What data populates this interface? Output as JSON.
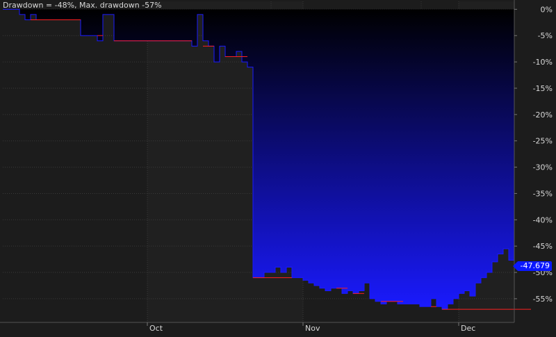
{
  "header": {
    "title": "Drawdown = -48%, Max. drawdown -57%"
  },
  "current_value_label": "-47.679",
  "colors": {
    "background": "#1c1c1c",
    "band_alternate": "#202020",
    "grid": "#3a3a3a",
    "area_top": "#000000",
    "area_bottom": "#1a1aff",
    "line": "#1a1aff",
    "max_marker": "#ff2020",
    "badge": "#0a18ff",
    "axis_text": "#d8d8d8"
  },
  "chart_data": {
    "type": "area",
    "title": "Drawdown = -48%, Max. drawdown -57%",
    "y_axis_side": "right",
    "ylim": [
      -59.5,
      1.5
    ],
    "yticks": [
      0,
      -5,
      -10,
      -15,
      -20,
      -25,
      -30,
      -35,
      -40,
      -45,
      -50,
      -55
    ],
    "ytick_labels": [
      "0%",
      "-5%",
      "-10%",
      "-15%",
      "-20%",
      "-25%",
      "-30%",
      "-35%",
      "-40%",
      "-45%",
      "-50%",
      "-55%"
    ],
    "xtick_labels": [
      "Oct",
      "Nov",
      "Dec"
    ],
    "xtick_positions": [
      26,
      54,
      82
    ],
    "grid": true,
    "step": true,
    "series": [
      {
        "values": [
          0,
          0,
          0,
          -1,
          -2,
          -1,
          -2,
          -2,
          -2,
          -2,
          -2,
          -2,
          -2,
          -2,
          -5,
          -5,
          -5,
          -6,
          -1,
          -1,
          -6,
          -6,
          -6,
          -6,
          -6,
          -6,
          -6,
          -6,
          -6,
          -6,
          -6,
          -6,
          -6,
          -6,
          -7,
          -1,
          -6,
          -7,
          -10,
          -7,
          -9,
          -9,
          -8,
          -10,
          -11,
          -51,
          -51,
          -50,
          -50,
          -49,
          -50,
          -49,
          -51,
          -51,
          -51.5,
          -52,
          -52.5,
          -53,
          -53.5,
          -53,
          -53,
          -54,
          -53.5,
          -54,
          -53.5,
          -52,
          -55,
          -55.5,
          -56,
          -55.5,
          -55.5,
          -56,
          -56,
          -56,
          -56,
          -56.5,
          -56.5,
          -55,
          -56.5,
          -57,
          -56,
          -55,
          -54,
          -53.5,
          -54.5,
          -52,
          -51,
          -50,
          -48,
          -46.5,
          -45.5,
          -47.679
        ]
      }
    ],
    "max_drawdown_markers": [
      {
        "value": -2,
        "start": 5,
        "end": 14
      },
      {
        "value": -5,
        "start": 17,
        "end": 18
      },
      {
        "value": -6,
        "start": 20,
        "end": 34
      },
      {
        "value": -7,
        "start": 36,
        "end": 38
      },
      {
        "value": -9,
        "start": 40,
        "end": 44
      },
      {
        "value": -51,
        "start": 45,
        "end": 52
      },
      {
        "value": -53,
        "start": 60,
        "end": 62
      },
      {
        "value": -54,
        "start": 63,
        "end": 65
      },
      {
        "value": -55.5,
        "start": 68,
        "end": 72
      },
      {
        "value": -56.5,
        "start": 77,
        "end": 78
      },
      {
        "value": -57,
        "start": 79,
        "end": 95
      }
    ]
  }
}
